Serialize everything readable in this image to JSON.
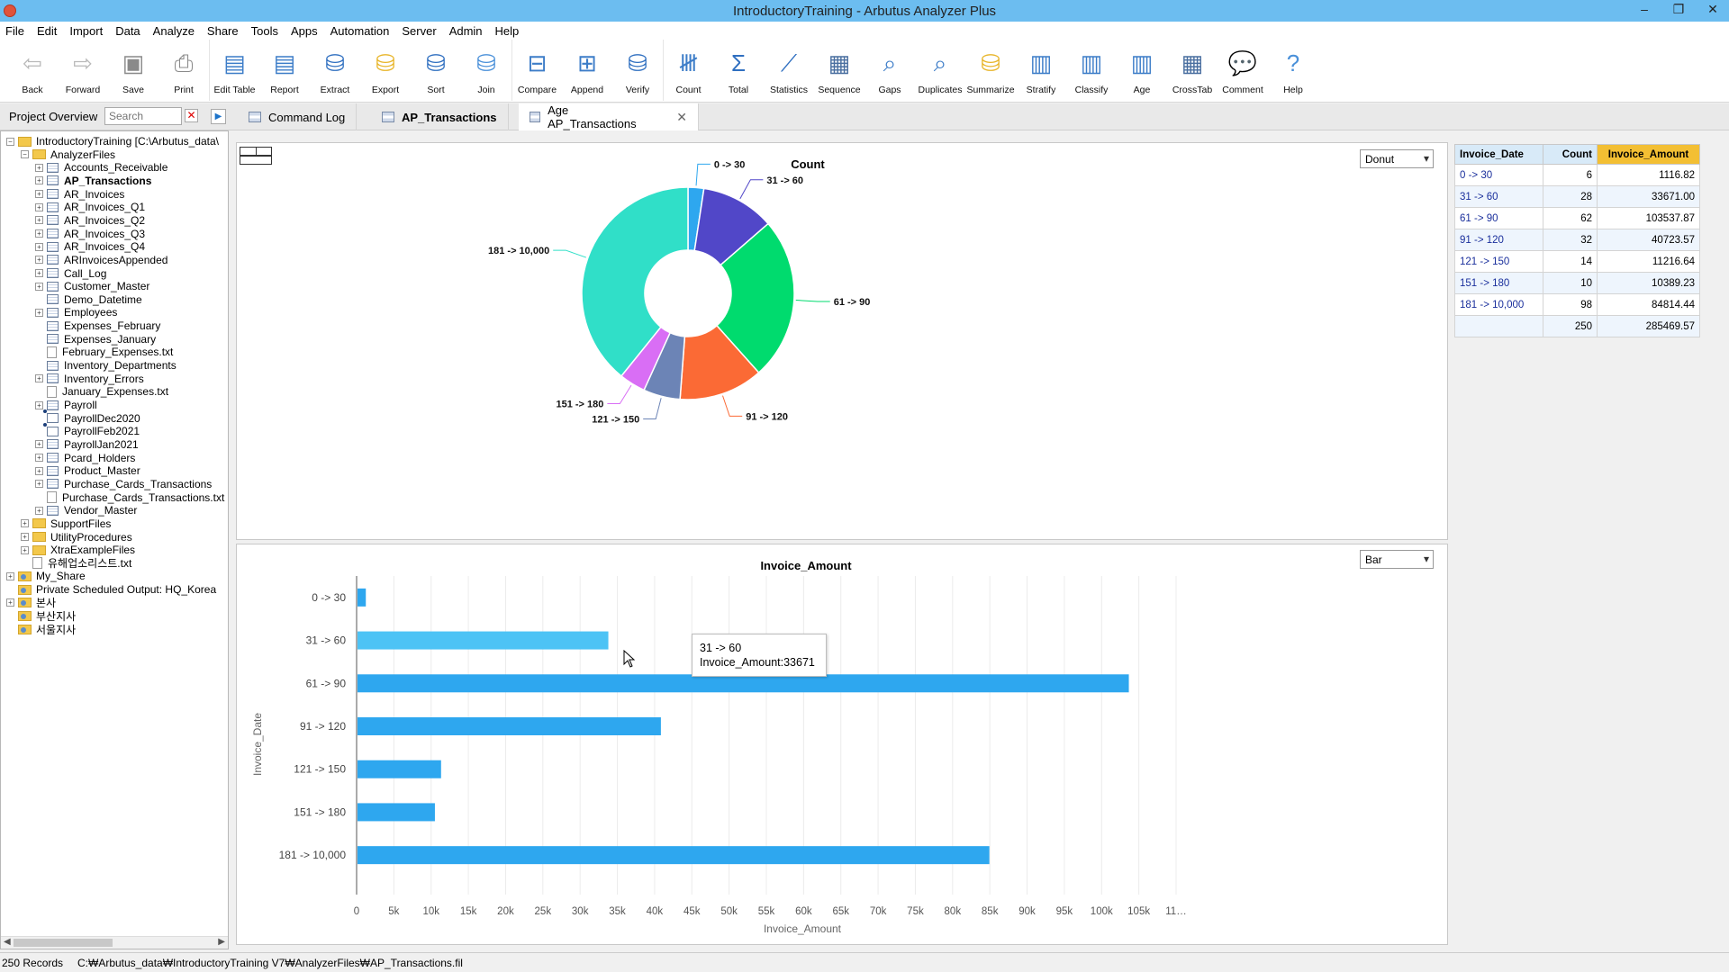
{
  "window": {
    "title": "IntroductoryTraining - Arbutus Analyzer Plus",
    "controls": [
      "–",
      "❐",
      "✕"
    ]
  },
  "menu": [
    "File",
    "Edit",
    "Import",
    "Data",
    "Analyze",
    "Share",
    "Tools",
    "Apps",
    "Automation",
    "Server",
    "Admin",
    "Help"
  ],
  "toolbar": [
    {
      "label": "Back",
      "icon": "arrow-left-icon",
      "glyph": "⇦",
      "color": "#b9b9b9"
    },
    {
      "label": "Forward",
      "icon": "arrow-right-icon",
      "glyph": "⇨",
      "color": "#b9b9b9"
    },
    {
      "label": "Save",
      "icon": "save-icon",
      "glyph": "▣",
      "color": "#8a8a8a"
    },
    {
      "label": "Print",
      "icon": "print-icon",
      "glyph": "⎙",
      "color": "#8a8a8a"
    },
    {
      "label": "Edit Table",
      "icon": "edit-table-icon",
      "glyph": "▤",
      "color": "#3d7dc8"
    },
    {
      "label": "Report",
      "icon": "report-icon",
      "glyph": "▤",
      "color": "#3d7dc8"
    },
    {
      "label": "Extract",
      "icon": "extract-icon",
      "glyph": "⛁",
      "color": "#2f6fc0"
    },
    {
      "label": "Export",
      "icon": "export-icon",
      "glyph": "⛁",
      "color": "#e8b52a"
    },
    {
      "label": "Sort",
      "icon": "sort-icon",
      "glyph": "⛁",
      "color": "#2f6fc0"
    },
    {
      "label": "Join",
      "icon": "join-icon",
      "glyph": "⛁",
      "color": "#4a90d9"
    },
    {
      "label": "Compare",
      "icon": "compare-icon",
      "glyph": "⊟",
      "color": "#3d7dc8"
    },
    {
      "label": "Append",
      "icon": "append-icon",
      "glyph": "⊞",
      "color": "#3d7dc8"
    },
    {
      "label": "Verify",
      "icon": "verify-icon",
      "glyph": "⛁",
      "color": "#2f6fc0"
    },
    {
      "label": "Count",
      "icon": "count-icon",
      "glyph": "𝍸",
      "color": "#3d7dc8"
    },
    {
      "label": "Total",
      "icon": "total-icon",
      "glyph": "Σ",
      "color": "#2f6fc0"
    },
    {
      "label": "Statistics",
      "icon": "statistics-icon",
      "glyph": "⟋",
      "color": "#2f6fc0"
    },
    {
      "label": "Sequence",
      "icon": "sequence-icon",
      "glyph": "▦",
      "color": "#4a6fa0"
    },
    {
      "label": "Gaps",
      "icon": "gaps-icon",
      "glyph": "⌕",
      "color": "#3d7dc8"
    },
    {
      "label": "Duplicates",
      "icon": "duplicates-icon",
      "glyph": "⌕",
      "color": "#3d7dc8"
    },
    {
      "label": "Summarize",
      "icon": "summarize-icon",
      "glyph": "⛁",
      "color": "#e8b52a"
    },
    {
      "label": "Stratify",
      "icon": "stratify-icon",
      "glyph": "▥",
      "color": "#3d7dc8"
    },
    {
      "label": "Classify",
      "icon": "classify-icon",
      "glyph": "▥",
      "color": "#3d7dc8"
    },
    {
      "label": "Age",
      "icon": "age-icon",
      "glyph": "▥",
      "color": "#3d7dc8"
    },
    {
      "label": "CrossTab",
      "icon": "crosstab-icon",
      "glyph": "▦",
      "color": "#4a6fa0"
    },
    {
      "label": "Comment",
      "icon": "comment-icon",
      "glyph": "💬",
      "color": "#4a90d9"
    },
    {
      "label": "Help",
      "icon": "help-icon",
      "glyph": "?",
      "color": "#4a90d9"
    }
  ],
  "project": {
    "label": "Project Overview",
    "search_placeholder": "Search",
    "tree": [
      {
        "label": "IntroductoryTraining [C:\\Arbutus_data\\",
        "icon": "folder",
        "depth": 0,
        "exp": "−"
      },
      {
        "label": "AnalyzerFiles",
        "icon": "folder",
        "depth": 1,
        "exp": "−"
      },
      {
        "label": "Accounts_Receivable",
        "icon": "table",
        "depth": 2,
        "exp": "+"
      },
      {
        "label": "AP_Transactions",
        "icon": "table",
        "depth": 2,
        "exp": "+",
        "bold": true
      },
      {
        "label": "AR_Invoices",
        "icon": "table",
        "depth": 2,
        "exp": "+"
      },
      {
        "label": "AR_Invoices_Q1",
        "icon": "table",
        "depth": 2,
        "exp": "+"
      },
      {
        "label": "AR_Invoices_Q2",
        "icon": "table",
        "depth": 2,
        "exp": "+"
      },
      {
        "label": "AR_Invoices_Q3",
        "icon": "table",
        "depth": 2,
        "exp": "+"
      },
      {
        "label": "AR_Invoices_Q4",
        "icon": "table",
        "depth": 2,
        "exp": "+"
      },
      {
        "label": "ARInvoicesAppended",
        "icon": "table",
        "depth": 2,
        "exp": "+"
      },
      {
        "label": "Call_Log",
        "icon": "table",
        "depth": 2,
        "exp": "+"
      },
      {
        "label": "Customer_Master",
        "icon": "table",
        "depth": 2,
        "exp": "+"
      },
      {
        "label": "Demo_Datetime",
        "icon": "table",
        "depth": 2,
        "exp": ""
      },
      {
        "label": "Employees",
        "icon": "table",
        "depth": 2,
        "exp": "+"
      },
      {
        "label": "Expenses_February",
        "icon": "table",
        "depth": 2,
        "exp": ""
      },
      {
        "label": "Expenses_January",
        "icon": "table",
        "depth": 2,
        "exp": ""
      },
      {
        "label": "February_Expenses.txt",
        "icon": "text",
        "depth": 2,
        "exp": ""
      },
      {
        "label": "Inventory_Departments",
        "icon": "table",
        "depth": 2,
        "exp": ""
      },
      {
        "label": "Inventory_Errors",
        "icon": "table",
        "depth": 2,
        "exp": "+"
      },
      {
        "label": "January_Expenses.txt",
        "icon": "text",
        "depth": 2,
        "exp": ""
      },
      {
        "label": "Payroll",
        "icon": "table",
        "depth": 2,
        "exp": "+"
      },
      {
        "label": "PayrollDec2020",
        "icon": "link",
        "depth": 2,
        "exp": ""
      },
      {
        "label": "PayrollFeb2021",
        "icon": "link",
        "depth": 2,
        "exp": ""
      },
      {
        "label": "PayrollJan2021",
        "icon": "table",
        "depth": 2,
        "exp": "+"
      },
      {
        "label": "Pcard_Holders",
        "icon": "table",
        "depth": 2,
        "exp": "+"
      },
      {
        "label": "Product_Master",
        "icon": "table",
        "depth": 2,
        "exp": "+"
      },
      {
        "label": "Purchase_Cards_Transactions",
        "icon": "table",
        "depth": 2,
        "exp": "+"
      },
      {
        "label": "Purchase_Cards_Transactions.txt",
        "icon": "text",
        "depth": 2,
        "exp": ""
      },
      {
        "label": "Vendor_Master",
        "icon": "table",
        "depth": 2,
        "exp": "+"
      },
      {
        "label": "SupportFiles",
        "icon": "folder",
        "depth": 1,
        "exp": "+"
      },
      {
        "label": "UtilityProcedures",
        "icon": "folder",
        "depth": 1,
        "exp": "+"
      },
      {
        "label": "XtraExampleFiles",
        "icon": "folder",
        "depth": 1,
        "exp": "+"
      },
      {
        "label": "유해업소리스트.txt",
        "icon": "text",
        "depth": 1,
        "exp": ""
      },
      {
        "label": "My_Share",
        "icon": "share",
        "depth": 0,
        "exp": "+"
      },
      {
        "label": "Private Scheduled Output:  HQ_Korea",
        "icon": "share",
        "depth": 0,
        "exp": ""
      },
      {
        "label": "본사",
        "icon": "share",
        "depth": 0,
        "exp": "+"
      },
      {
        "label": "부산지사",
        "icon": "share",
        "depth": 0,
        "exp": ""
      },
      {
        "label": "서울지사",
        "icon": "share",
        "depth": 0,
        "exp": ""
      }
    ]
  },
  "tabs": [
    {
      "label": "Command Log",
      "active": false
    },
    {
      "label": "AP_Transactions",
      "active": false,
      "bold": true
    },
    {
      "label": "Age AP_Transactions",
      "active": true,
      "close": "✕"
    }
  ],
  "donut": {
    "selector": "Donut",
    "chart_data": {
      "type": "pie",
      "title": "Count",
      "categories": [
        "0 -> 30",
        "31 -> 60",
        "61 -> 90",
        "91 -> 120",
        "121 -> 150",
        "151 -> 180",
        "181 -> 10,000"
      ],
      "values": [
        6,
        28,
        62,
        32,
        14,
        10,
        98
      ],
      "colors": [
        "#2ea7ef",
        "#5147c8",
        "#00db6e",
        "#fb6a35",
        "#6c84b6",
        "#d96ef5",
        "#30dfc8"
      ]
    }
  },
  "bar": {
    "selector": "Bar",
    "chart_data": {
      "type": "bar",
      "orientation": "horizontal",
      "title": "Invoice_Amount",
      "xlabel": "Invoice_Amount",
      "ylabel": "Invoice_Date",
      "categories": [
        "0 -> 30",
        "31 -> 60",
        "61 -> 90",
        "91 -> 120",
        "121 -> 150",
        "151 -> 180",
        "181 -> 10,000"
      ],
      "values": [
        1116.82,
        33671.0,
        103537.87,
        40723.57,
        11216.64,
        10389.23,
        84814.44
      ],
      "xlim": [
        0,
        110000
      ],
      "xticks": [
        "0",
        "5k",
        "10k",
        "15k",
        "20k",
        "25k",
        "30k",
        "35k",
        "40k",
        "45k",
        "50k",
        "55k",
        "60k",
        "65k",
        "70k",
        "75k",
        "80k",
        "85k",
        "90k",
        "95k",
        "100k",
        "105k",
        "11…"
      ],
      "bar_color": "#2ea7ef",
      "highlight_color": "#4dc3f5",
      "highlighted_index": 1
    },
    "tooltip": {
      "line1": "31 -> 60",
      "line2": "Invoice_Amount:33671"
    }
  },
  "results": {
    "headers": [
      "Invoice_Date",
      "Count",
      "Invoice_Amount"
    ],
    "rows": [
      [
        "0 -> 30",
        "6",
        "1116.82"
      ],
      [
        "31 -> 60",
        "28",
        "33671.00"
      ],
      [
        "61 -> 90",
        "62",
        "103537.87"
      ],
      [
        "91 -> 120",
        "32",
        "40723.57"
      ],
      [
        "121 -> 150",
        "14",
        "11216.64"
      ],
      [
        "151 -> 180",
        "10",
        "10389.23"
      ],
      [
        "181 -> 10,000",
        "98",
        "84814.44"
      ]
    ],
    "total": [
      "",
      "250",
      "285469.57"
    ]
  },
  "status": {
    "records": "250 Records",
    "path": "C:₩Arbutus_data₩IntroductoryTraining V7₩AnalyzerFiles₩AP_Transactions.fil"
  }
}
